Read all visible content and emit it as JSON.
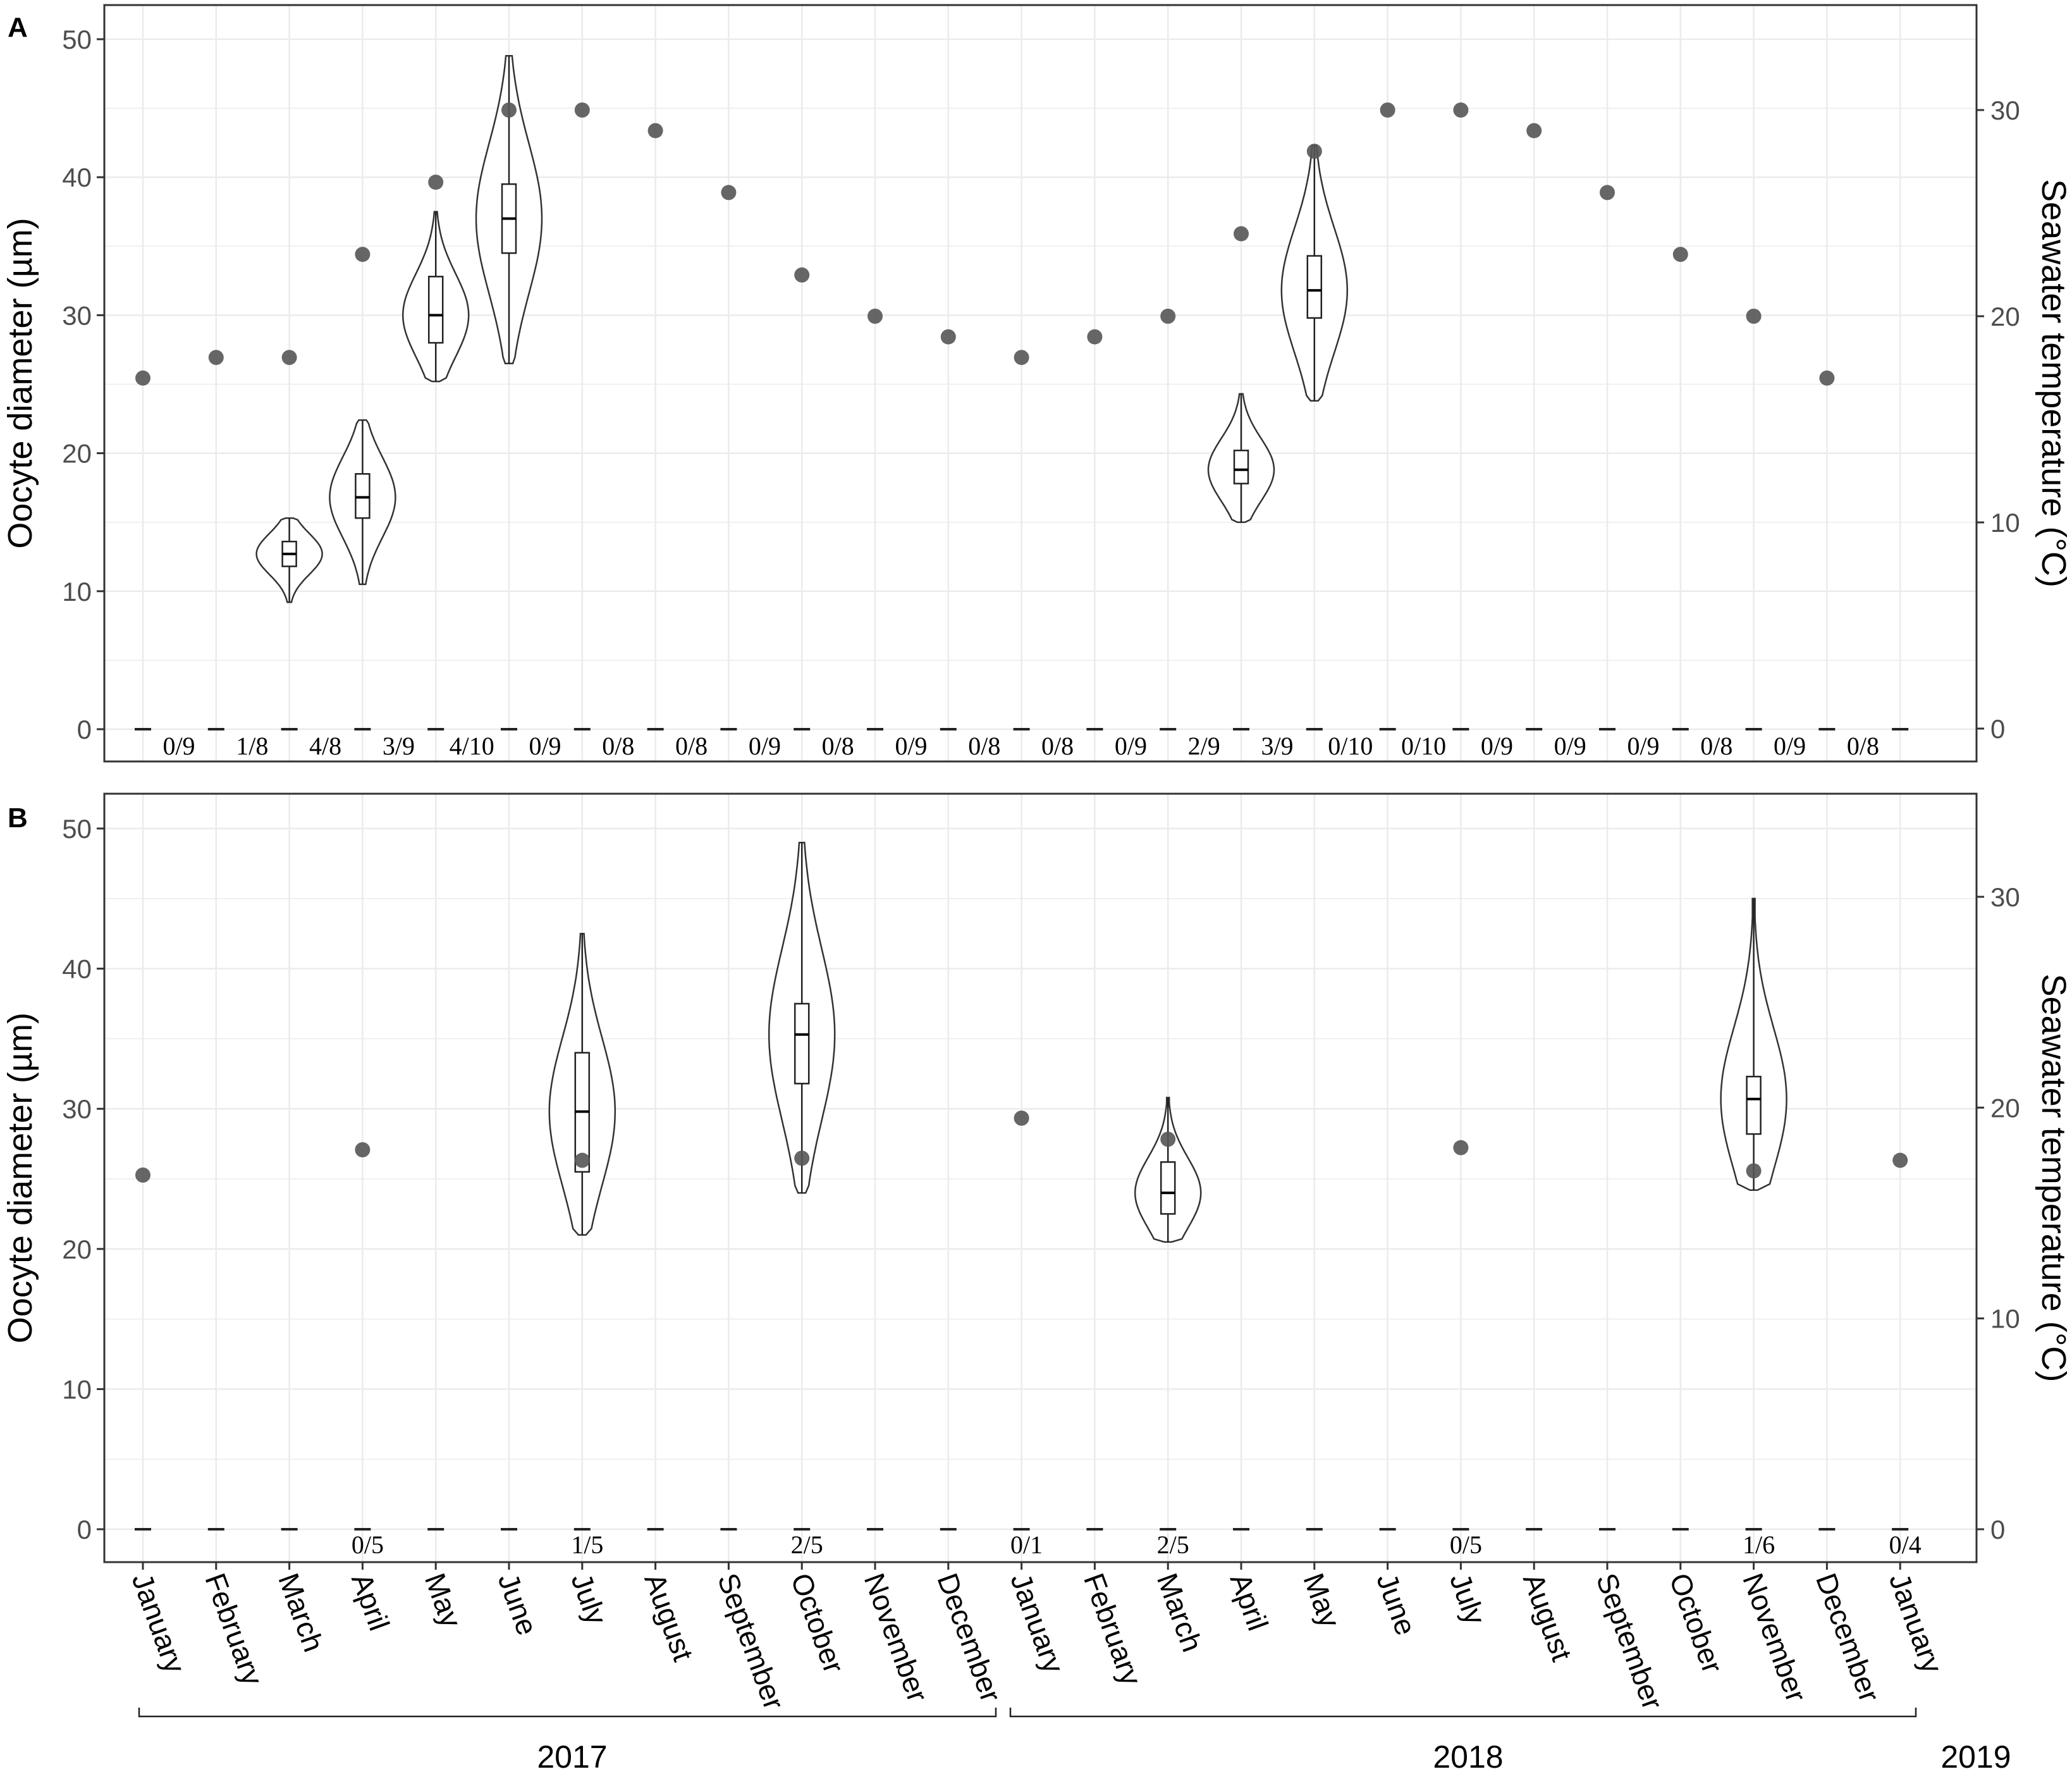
{
  "chart_data": [
    {
      "type": "violin+scatter",
      "panel": "A",
      "ylabel_left": "Oocyte diameter (µm)",
      "ylabel_right": "Seawater temperature (°C)",
      "ylim_left": [
        0,
        52
      ],
      "ylim_right": [
        0,
        35
      ],
      "yticks_left": [
        "0",
        "10",
        "20",
        "30",
        "40",
        "50"
      ],
      "yticks_right": [
        "0",
        "10",
        "20",
        "30"
      ],
      "grid": true,
      "categories": [
        "January",
        "February",
        "March",
        "April",
        "May",
        "June",
        "July",
        "August",
        "September",
        "October",
        "November",
        "December",
        "January",
        "February",
        "March",
        "April",
        "May",
        "June",
        "July",
        "August",
        "September",
        "October",
        "November",
        "December",
        "January"
      ],
      "temperature": [
        17,
        18,
        18,
        23,
        26.5,
        30,
        30,
        29,
        26,
        22,
        20,
        19,
        18,
        19,
        20,
        24,
        28,
        30,
        30,
        29,
        26,
        23,
        20,
        17
      ],
      "ratios": [
        "0/9",
        "1/8",
        "4/8",
        "3/9",
        "4/10",
        "0/9",
        "0/8",
        "0/8",
        "0/9",
        "0/8",
        "0/9",
        "0/8",
        "0/8",
        "0/9",
        "2/9",
        "3/9",
        "0/10",
        "0/10",
        "0/9",
        "0/9",
        "0/9",
        "0/8",
        "0/9",
        "0/8"
      ],
      "violins": [
        {
          "index": 2,
          "min": 9.2,
          "q1": 11.8,
          "median": 12.7,
          "q3": 13.6,
          "max": 15.3
        },
        {
          "index": 3,
          "min": 10.5,
          "q1": 15.3,
          "median": 16.8,
          "q3": 18.5,
          "max": 22.4
        },
        {
          "index": 4,
          "min": 25.2,
          "q1": 28.0,
          "median": 30.0,
          "q3": 32.8,
          "max": 37.5
        },
        {
          "index": 5,
          "min": 26.5,
          "q1": 34.5,
          "median": 37.0,
          "q3": 39.5,
          "max": 48.8
        },
        {
          "index": 15,
          "min": 15.0,
          "q1": 17.8,
          "median": 18.8,
          "q3": 20.2,
          "max": 24.3
        },
        {
          "index": 16,
          "min": 23.8,
          "q1": 29.8,
          "median": 31.8,
          "q3": 34.3,
          "max": 42.3
        }
      ]
    },
    {
      "type": "violin+scatter",
      "panel": "B",
      "ylabel_left": "Oocyte diameter (µm)",
      "ylabel_right": "Seawater temperature (°C)",
      "ylim_left": [
        0,
        52
      ],
      "ylim_right": [
        0,
        35
      ],
      "yticks_left": [
        "0",
        "10",
        "20",
        "30",
        "40",
        "50"
      ],
      "yticks_right": [
        "0",
        "10",
        "20",
        "30"
      ],
      "grid": true,
      "categories": [
        "January",
        "February",
        "March",
        "April",
        "May",
        "June",
        "July",
        "August",
        "September",
        "October",
        "November",
        "December",
        "January",
        "February",
        "March",
        "April",
        "May",
        "June",
        "July",
        "August",
        "September",
        "October",
        "November",
        "December",
        "January"
      ],
      "temperature_points": [
        {
          "index": 0,
          "value": 16.8
        },
        {
          "index": 3,
          "value": 18.0
        },
        {
          "index": 6,
          "value": 17.5
        },
        {
          "index": 9,
          "value": 17.6
        },
        {
          "index": 12,
          "value": 19.5
        },
        {
          "index": 14,
          "value": 18.5
        },
        {
          "index": 18,
          "value": 18.1
        },
        {
          "index": 22,
          "value": 17.0
        },
        {
          "index": 24,
          "value": 17.5
        }
      ],
      "ratio_labels": [
        {
          "index": 3,
          "text": "0/5"
        },
        {
          "index": 6,
          "text": "1/5"
        },
        {
          "index": 9,
          "text": "2/5"
        },
        {
          "index": 12,
          "text": "0/1"
        },
        {
          "index": 14,
          "text": "2/5"
        },
        {
          "index": 18,
          "text": "0/5"
        },
        {
          "index": 22,
          "text": "1/6"
        },
        {
          "index": 24,
          "text": "0/4"
        }
      ],
      "violins": [
        {
          "index": 6,
          "min": 21.0,
          "q1": 25.5,
          "median": 29.8,
          "q3": 34.0,
          "max": 42.5
        },
        {
          "index": 9,
          "min": 24.0,
          "q1": 31.8,
          "median": 35.3,
          "q3": 37.5,
          "max": 49.0
        },
        {
          "index": 14,
          "min": 20.5,
          "q1": 22.5,
          "median": 24.0,
          "q3": 26.2,
          "max": 30.8
        },
        {
          "index": 22,
          "min": 24.2,
          "q1": 28.2,
          "median": 30.7,
          "q3": 32.3,
          "max": 45.0
        }
      ]
    }
  ],
  "years": [
    {
      "label": "2017"
    },
    {
      "label": "2018"
    },
    {
      "label": "2019"
    }
  ],
  "colors": {
    "point": "#555555",
    "violin_stroke": "#333333",
    "grid": "#ebebeb",
    "frame": "#333333"
  }
}
